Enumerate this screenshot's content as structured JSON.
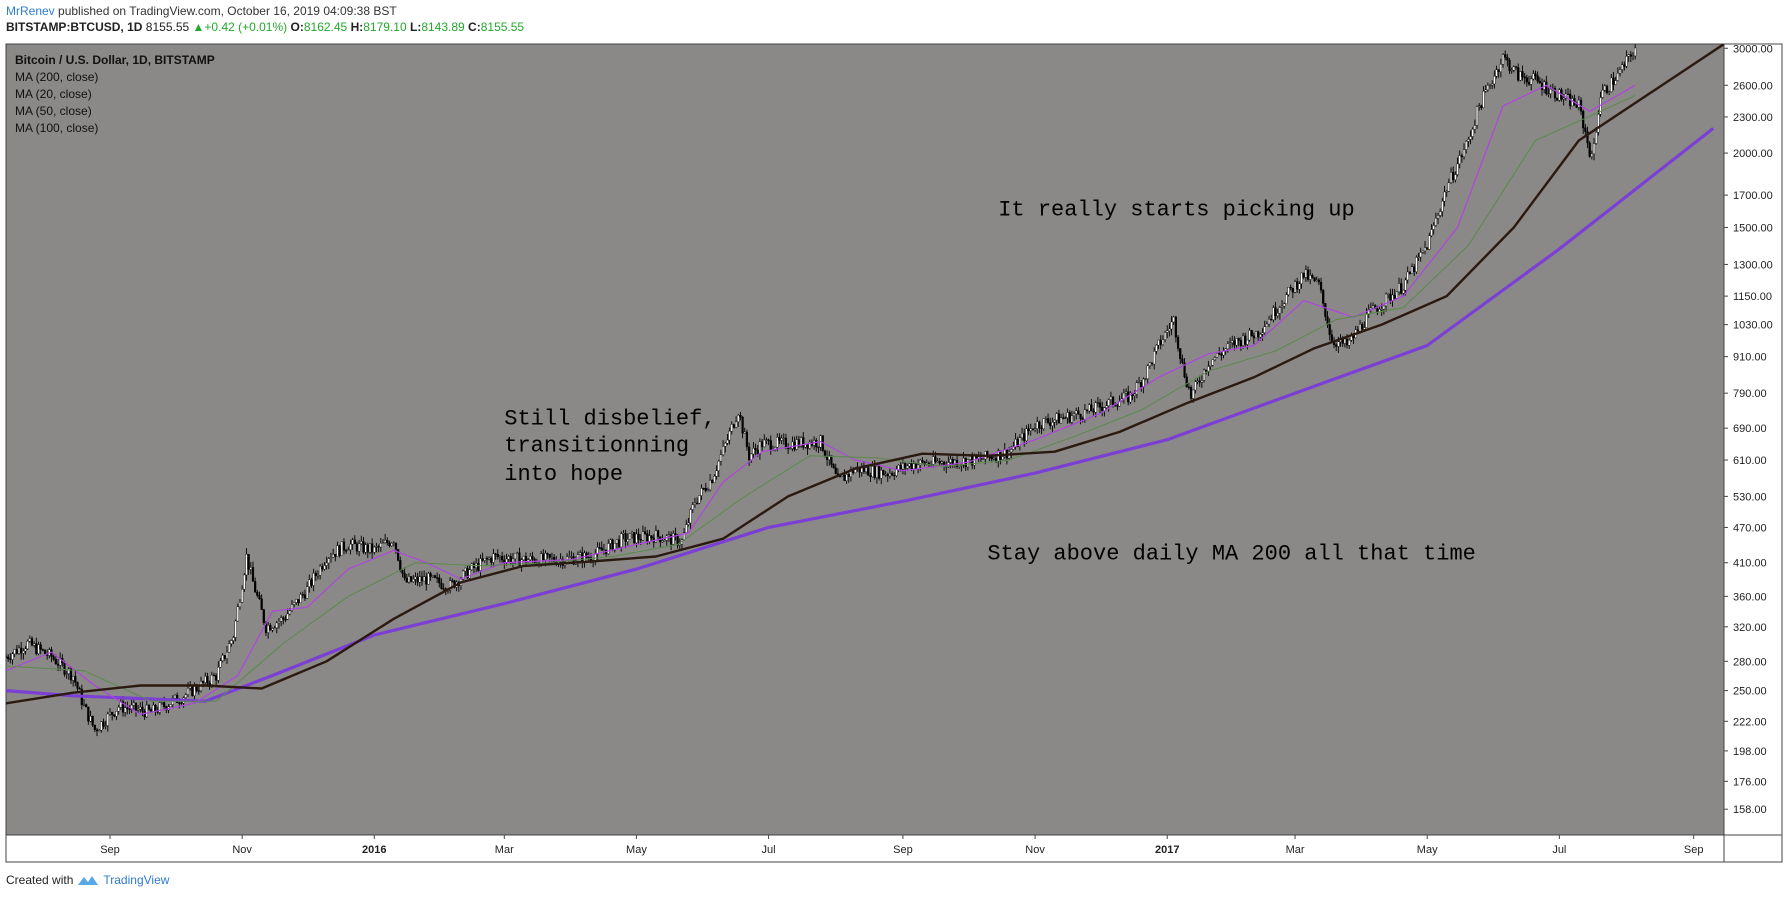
{
  "header": {
    "author": "MrRenev",
    "published": "published on TradingView.com, October 16, 2019 04:09:38 BST",
    "symbol": "BITSTAMP:BTCUSD, 1D",
    "last": "8155.55",
    "change": "+0.42 (+0.01%)",
    "o_label": "O:",
    "o_val": "8162.45",
    "h_label": "H:",
    "h_val": "8179.10",
    "l_label": "L:",
    "l_val": "8143.89",
    "c_label": "C:",
    "c_val": "8155.55"
  },
  "footer": {
    "created_with": "Created with",
    "brand": "TradingView"
  },
  "colors": {
    "background": "#8a8987",
    "candle": "#000000",
    "ma200": "#7b3fd6",
    "ma20": "#b044e0",
    "ma50": "#5a8a4a",
    "ma100": "#2b1a10"
  },
  "chart_data": {
    "type": "line",
    "title": "Bitcoin / U.S. Dollar, 1D, BITSTAMP",
    "scale": "log",
    "legend": [
      "MA (200, close)",
      "MA (20, close)",
      "MA (50, close)",
      "MA (100, close)"
    ],
    "x_ticks": [
      {
        "label": "Sep",
        "date": "2015-09-01"
      },
      {
        "label": "Nov",
        "date": "2015-11-01"
      },
      {
        "label": "2016",
        "date": "2016-01-01",
        "bold": true
      },
      {
        "label": "Mar",
        "date": "2016-03-01"
      },
      {
        "label": "May",
        "date": "2016-05-01"
      },
      {
        "label": "Jul",
        "date": "2016-07-01"
      },
      {
        "label": "Sep",
        "date": "2016-09-01"
      },
      {
        "label": "Nov",
        "date": "2016-11-01"
      },
      {
        "label": "2017",
        "date": "2017-01-01",
        "bold": true
      },
      {
        "label": "Mar",
        "date": "2017-03-01"
      },
      {
        "label": "May",
        "date": "2017-05-01"
      },
      {
        "label": "Jul",
        "date": "2017-07-01"
      },
      {
        "label": "Sep",
        "date": "2017-09-01"
      }
    ],
    "y_ticks": [
      "3000.00",
      "2600.00",
      "2300.00",
      "2000.00",
      "1700.00",
      "1500.00",
      "1300.00",
      "1150.00",
      "1030.00",
      "910.00",
      "790.00",
      "690.00",
      "610.00",
      "530.00",
      "470.00",
      "410.00",
      "360.00",
      "320.00",
      "280.00",
      "250.00",
      "222.00",
      "198.00",
      "176.00",
      "158.00"
    ],
    "ylim": [
      143,
      3050
    ],
    "xlim": [
      "2015-07-15",
      "2017-09-15"
    ],
    "price_series": {
      "name": "BTCUSD",
      "points": [
        [
          "2015-07-15",
          285
        ],
        [
          "2015-07-25",
          300
        ],
        [
          "2015-08-05",
          285
        ],
        [
          "2015-08-15",
          265
        ],
        [
          "2015-08-20",
          235
        ],
        [
          "2015-08-25",
          215
        ],
        [
          "2015-09-05",
          235
        ],
        [
          "2015-09-20",
          230
        ],
        [
          "2015-10-05",
          245
        ],
        [
          "2015-10-20",
          265
        ],
        [
          "2015-10-28",
          310
        ],
        [
          "2015-11-03",
          420
        ],
        [
          "2015-11-06",
          380
        ],
        [
          "2015-11-12",
          320
        ],
        [
          "2015-11-20",
          330
        ],
        [
          "2015-12-01",
          370
        ],
        [
          "2015-12-10",
          420
        ],
        [
          "2015-12-20",
          440
        ],
        [
          "2016-01-01",
          430
        ],
        [
          "2016-01-10",
          450
        ],
        [
          "2016-01-15",
          380
        ],
        [
          "2016-01-25",
          385
        ],
        [
          "2016-02-05",
          375
        ],
        [
          "2016-02-15",
          400
        ],
        [
          "2016-02-25",
          420
        ],
        [
          "2016-03-10",
          415
        ],
        [
          "2016-03-25",
          415
        ],
        [
          "2016-04-10",
          420
        ],
        [
          "2016-04-25",
          450
        ],
        [
          "2016-05-10",
          455
        ],
        [
          "2016-05-22",
          445
        ],
        [
          "2016-05-28",
          520
        ],
        [
          "2016-06-05",
          570
        ],
        [
          "2016-06-12",
          660
        ],
        [
          "2016-06-17",
          740
        ],
        [
          "2016-06-22",
          620
        ],
        [
          "2016-06-28",
          650
        ],
        [
          "2016-07-10",
          650
        ],
        [
          "2016-07-25",
          655
        ],
        [
          "2016-08-02",
          560
        ],
        [
          "2016-08-10",
          590
        ],
        [
          "2016-08-25",
          580
        ],
        [
          "2016-09-05",
          600
        ],
        [
          "2016-09-20",
          605
        ],
        [
          "2016-10-05",
          610
        ],
        [
          "2016-10-20",
          630
        ],
        [
          "2016-11-01",
          700
        ],
        [
          "2016-11-15",
          720
        ],
        [
          "2016-11-25",
          735
        ],
        [
          "2016-12-05",
          760
        ],
        [
          "2016-12-15",
          780
        ],
        [
          "2016-12-22",
          850
        ],
        [
          "2016-12-28",
          950
        ],
        [
          "2017-01-04",
          1050
        ],
        [
          "2017-01-08",
          880
        ],
        [
          "2017-01-12",
          780
        ],
        [
          "2017-01-20",
          890
        ],
        [
          "2017-02-01",
          960
        ],
        [
          "2017-02-12",
          1000
        ],
        [
          "2017-02-25",
          1150
        ],
        [
          "2017-03-05",
          1250
        ],
        [
          "2017-03-12",
          1200
        ],
        [
          "2017-03-18",
          970
        ],
        [
          "2017-03-25",
          950
        ],
        [
          "2017-04-05",
          1080
        ],
        [
          "2017-04-20",
          1200
        ],
        [
          "2017-05-01",
          1400
        ],
        [
          "2017-05-10",
          1750
        ],
        [
          "2017-05-20",
          2100
        ],
        [
          "2017-05-25",
          2400
        ],
        [
          "2017-06-05",
          2900
        ],
        [
          "2017-06-12",
          2700
        ],
        [
          "2017-06-20",
          2650
        ],
        [
          "2017-07-01",
          2500
        ],
        [
          "2017-07-10",
          2400
        ],
        [
          "2017-07-16",
          1950
        ],
        [
          "2017-07-20",
          2500
        ],
        [
          "2017-07-28",
          2700
        ],
        [
          "2017-08-05",
          3000
        ]
      ]
    },
    "series": [
      {
        "name": "MA (200, close)",
        "color": "#7b3fd6",
        "width": 3.2,
        "points": [
          [
            "2015-07-15",
            250
          ],
          [
            "2015-08-15",
            245
          ],
          [
            "2015-10-15",
            240
          ],
          [
            "2015-11-15",
            265
          ],
          [
            "2016-01-01",
            310
          ],
          [
            "2016-03-01",
            350
          ],
          [
            "2016-05-01",
            400
          ],
          [
            "2016-07-01",
            470
          ],
          [
            "2016-09-01",
            520
          ],
          [
            "2016-11-01",
            580
          ],
          [
            "2017-01-01",
            660
          ],
          [
            "2017-03-01",
            790
          ],
          [
            "2017-05-01",
            950
          ],
          [
            "2017-07-01",
            1380
          ],
          [
            "2017-09-10",
            2200
          ]
        ]
      },
      {
        "name": "MA (20, close)",
        "color": "#b044e0",
        "width": 1.2,
        "points": [
          [
            "2015-07-15",
            270
          ],
          [
            "2015-08-05",
            290
          ],
          [
            "2015-08-25",
            255
          ],
          [
            "2015-09-15",
            228
          ],
          [
            "2015-10-10",
            238
          ],
          [
            "2015-10-30",
            265
          ],
          [
            "2015-11-15",
            340
          ],
          [
            "2015-12-01",
            345
          ],
          [
            "2015-12-20",
            400
          ],
          [
            "2016-01-10",
            430
          ],
          [
            "2016-01-25",
            410
          ],
          [
            "2016-02-10",
            385
          ],
          [
            "2016-03-01",
            410
          ],
          [
            "2016-04-01",
            415
          ],
          [
            "2016-05-01",
            440
          ],
          [
            "2016-05-25",
            460
          ],
          [
            "2016-06-10",
            560
          ],
          [
            "2016-06-28",
            630
          ],
          [
            "2016-07-25",
            655
          ],
          [
            "2016-08-10",
            610
          ],
          [
            "2016-09-01",
            585
          ],
          [
            "2016-10-01",
            605
          ],
          [
            "2016-11-01",
            660
          ],
          [
            "2016-12-01",
            730
          ],
          [
            "2016-12-28",
            840
          ],
          [
            "2017-01-20",
            920
          ],
          [
            "2017-02-10",
            950
          ],
          [
            "2017-03-05",
            1130
          ],
          [
            "2017-03-28",
            1060
          ],
          [
            "2017-04-20",
            1150
          ],
          [
            "2017-05-15",
            1500
          ],
          [
            "2017-06-05",
            2400
          ],
          [
            "2017-06-25",
            2600
          ],
          [
            "2017-07-15",
            2350
          ],
          [
            "2017-08-05",
            2600
          ]
        ]
      },
      {
        "name": "MA (50, close)",
        "color": "#5a8a4a",
        "width": 1.0,
        "points": [
          [
            "2015-07-15",
            275
          ],
          [
            "2015-08-20",
            270
          ],
          [
            "2015-09-20",
            240
          ],
          [
            "2015-10-20",
            240
          ],
          [
            "2015-11-20",
            300
          ],
          [
            "2015-12-20",
            360
          ],
          [
            "2016-01-20",
            410
          ],
          [
            "2016-02-20",
            405
          ],
          [
            "2016-03-20",
            410
          ],
          [
            "2016-04-20",
            420
          ],
          [
            "2016-05-20",
            440
          ],
          [
            "2016-06-20",
            530
          ],
          [
            "2016-07-20",
            620
          ],
          [
            "2016-08-20",
            615
          ],
          [
            "2016-09-20",
            595
          ],
          [
            "2016-10-20",
            610
          ],
          [
            "2016-11-20",
            670
          ],
          [
            "2016-12-20",
            740
          ],
          [
            "2017-01-20",
            860
          ],
          [
            "2017-02-20",
            930
          ],
          [
            "2017-03-20",
            1050
          ],
          [
            "2017-04-20",
            1100
          ],
          [
            "2017-05-20",
            1400
          ],
          [
            "2017-06-20",
            2100
          ],
          [
            "2017-07-20",
            2350
          ],
          [
            "2017-08-05",
            2500
          ]
        ]
      },
      {
        "name": "MA (100, close)",
        "color": "#2b1a10",
        "width": 2.4,
        "points": [
          [
            "2015-07-15",
            238
          ],
          [
            "2015-08-15",
            248
          ],
          [
            "2015-09-15",
            255
          ],
          [
            "2015-10-15",
            255
          ],
          [
            "2015-11-10",
            252
          ],
          [
            "2015-12-10",
            280
          ],
          [
            "2016-01-10",
            330
          ],
          [
            "2016-02-10",
            380
          ],
          [
            "2016-03-10",
            405
          ],
          [
            "2016-04-10",
            412
          ],
          [
            "2016-05-10",
            420
          ],
          [
            "2016-06-10",
            450
          ],
          [
            "2016-07-10",
            530
          ],
          [
            "2016-08-10",
            590
          ],
          [
            "2016-09-10",
            625
          ],
          [
            "2016-10-10",
            620
          ],
          [
            "2016-11-10",
            630
          ],
          [
            "2016-12-10",
            680
          ],
          [
            "2017-01-10",
            760
          ],
          [
            "2017-02-10",
            840
          ],
          [
            "2017-03-10",
            940
          ],
          [
            "2017-04-10",
            1030
          ],
          [
            "2017-05-10",
            1150
          ],
          [
            "2017-06-10",
            1500
          ],
          [
            "2017-07-10",
            2100
          ],
          [
            "2017-09-15",
            3050
          ]
        ]
      }
    ],
    "annotations": [
      {
        "text": "Still disbelief,",
        "date": "2016-03-01",
        "price": 700
      },
      {
        "text": "transitionning",
        "date": "2016-03-01",
        "price": 630
      },
      {
        "text": "into hope",
        "date": "2016-03-01",
        "price": 565
      },
      {
        "text": "It really starts picking up",
        "date": "2016-10-15",
        "price": 1570
      },
      {
        "text": "Stay above daily MA 200 all that time",
        "date": "2016-10-10",
        "price": 415
      }
    ]
  }
}
